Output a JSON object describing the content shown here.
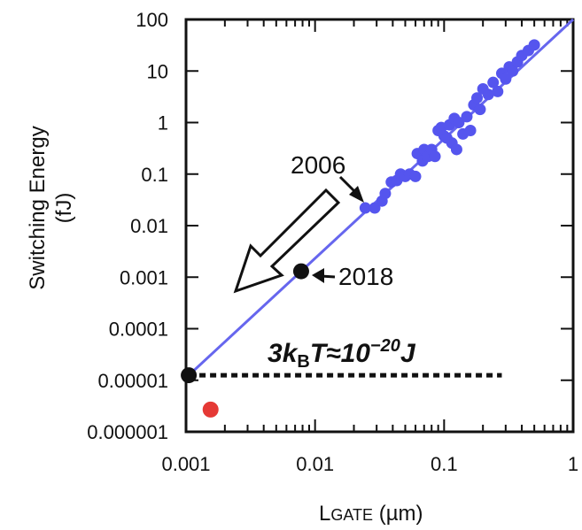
{
  "chart_data": {
    "type": "scatter",
    "title": "",
    "xlabel": {
      "main": "L",
      "sub": "GATE",
      "unit": " (µm)"
    },
    "ylabel": {
      "line1": "Switching Energy",
      "line2": "(fJ)"
    },
    "x_scale": "log",
    "y_scale": "log",
    "xlim": [
      0.001,
      1
    ],
    "ylim": [
      1e-06,
      100
    ],
    "x_tick_labels": [
      "0.001",
      "0.01",
      "0.1",
      "1"
    ],
    "y_tick_labels": [
      "0.000001",
      "0.00001",
      "0.0001",
      "0.001",
      "0.01",
      "0.1",
      "1",
      "10",
      "100"
    ],
    "grid": false,
    "colors": {
      "points": "#5555ee",
      "trend_line": "#6666ee",
      "marker": "#111111",
      "red_point": "#e53935"
    },
    "series": [
      {
        "points": [
          [
            0.0245,
            0.022
          ],
          [
            0.029,
            0.022
          ],
          [
            0.033,
            0.03
          ],
          [
            0.035,
            0.042
          ],
          [
            0.039,
            0.07
          ],
          [
            0.043,
            0.075
          ],
          [
            0.046,
            0.1
          ],
          [
            0.05,
            0.09
          ],
          [
            0.054,
            0.1
          ],
          [
            0.06,
            0.09
          ],
          [
            0.062,
            0.25
          ],
          [
            0.068,
            0.18
          ],
          [
            0.07,
            0.3
          ],
          [
            0.075,
            0.22
          ],
          [
            0.08,
            0.3
          ],
          [
            0.085,
            0.22
          ],
          [
            0.09,
            0.7
          ],
          [
            0.095,
            0.8
          ],
          [
            0.1,
            0.55
          ],
          [
            0.105,
            0.5
          ],
          [
            0.11,
            0.9
          ],
          [
            0.115,
            0.4
          ],
          [
            0.12,
            1.2
          ],
          [
            0.125,
            0.3
          ],
          [
            0.13,
            1.0
          ],
          [
            0.14,
            0.6
          ],
          [
            0.15,
            1.3
          ],
          [
            0.16,
            0.7
          ],
          [
            0.17,
            2.2
          ],
          [
            0.18,
            3.0
          ],
          [
            0.19,
            1.8
          ],
          [
            0.2,
            4.5
          ],
          [
            0.22,
            3.5
          ],
          [
            0.24,
            6.0
          ],
          [
            0.26,
            4.0
          ],
          [
            0.28,
            9.0
          ],
          [
            0.3,
            7.0
          ],
          [
            0.32,
            12.0
          ],
          [
            0.34,
            10.0
          ],
          [
            0.37,
            15.0
          ],
          [
            0.4,
            20.0
          ],
          [
            0.45,
            25.0
          ],
          [
            0.5,
            32.0
          ]
        ]
      }
    ],
    "trend_line": {
      "x": [
        0.00105,
        1.0
      ],
      "y": [
        1.25e-05,
        100
      ]
    },
    "highlight_points": [
      {
        "x": 0.0078,
        "y": 0.0013,
        "label": "2018",
        "color": "#111111"
      },
      {
        "x": 0.00105,
        "y": 1.25e-05,
        "label": "",
        "color": "#111111"
      },
      {
        "x": 0.00155,
        "y": 2.7e-06,
        "label": "",
        "color": "#e53935"
      }
    ],
    "reference_line": {
      "y": 1.25e-05,
      "x_range": [
        0.00105,
        0.28
      ],
      "style": "dotted"
    },
    "annotations": {
      "year_2006": "2006",
      "year_2018": "2018",
      "kbt": {
        "a": "3",
        "k": "k",
        "k_sub": "B",
        "t": "T≈10",
        "sup": "−20",
        "unit": "J"
      }
    }
  }
}
